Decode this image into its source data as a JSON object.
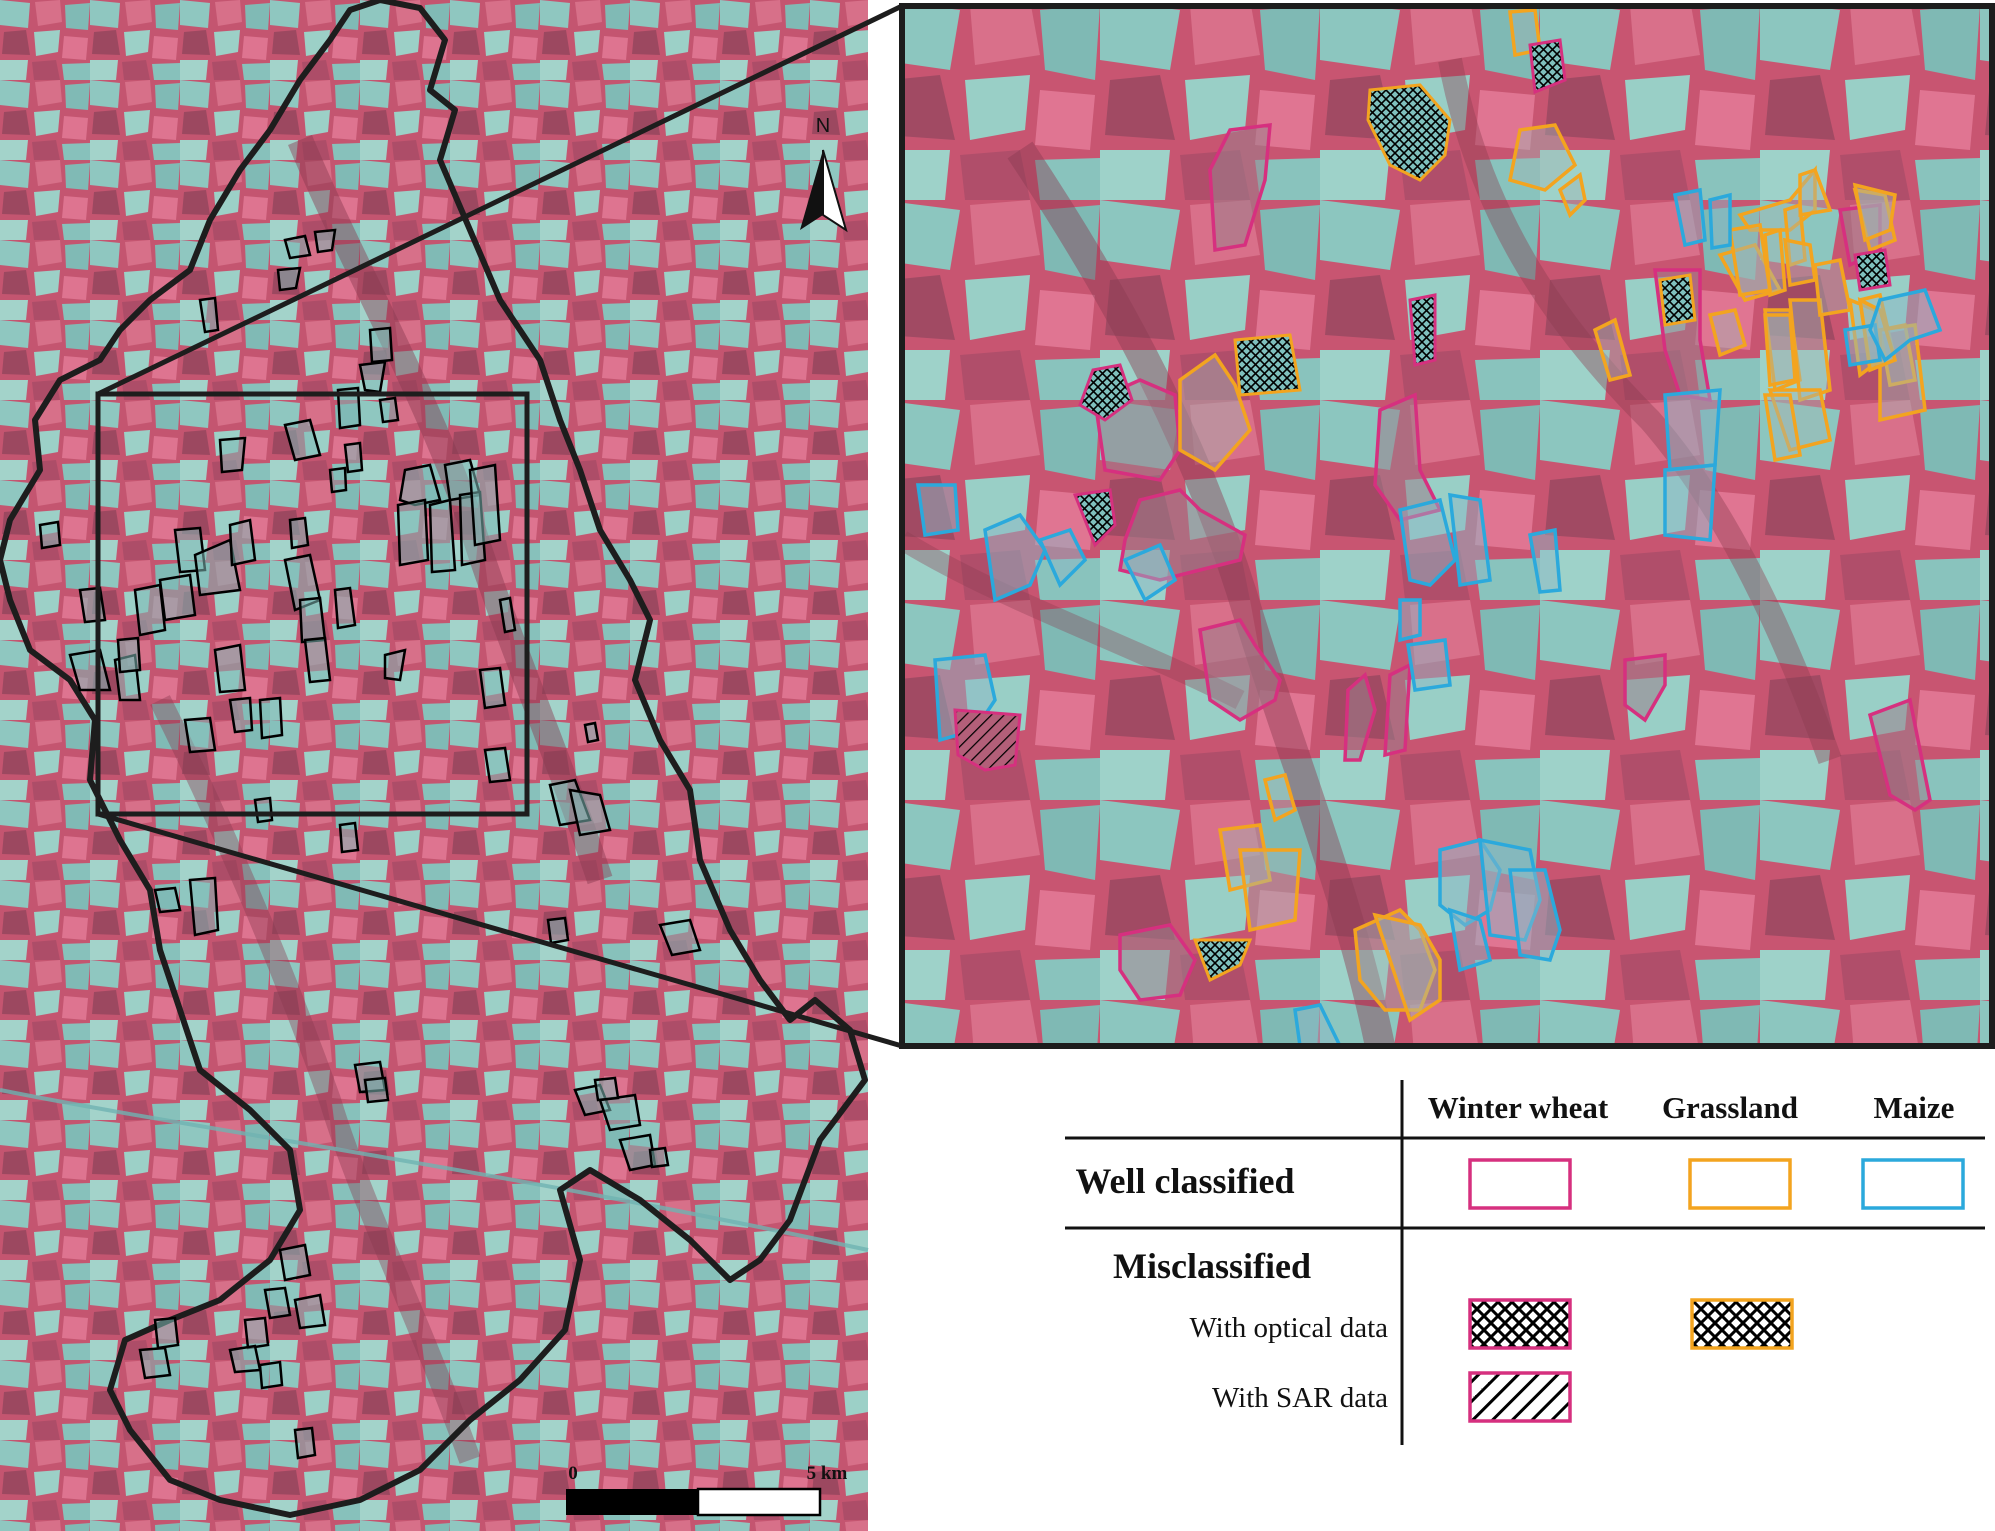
{
  "north_arrow": {
    "label": "N"
  },
  "scale_bar": {
    "start_label": "0",
    "end_label": "5 km"
  },
  "legend": {
    "columns": [
      "Winter wheat",
      "Grassland",
      "Maize"
    ],
    "row_well": "Well classified",
    "row_mis": "Misclassified",
    "sub_optical": "With optical data",
    "sub_sar": "With SAR data"
  },
  "colors": {
    "winter_wheat": "#d6307f",
    "grassland": "#f3a41f",
    "maize": "#2ba9dc",
    "background_red": "#c9506e",
    "background_cyan": "#86c7c0"
  }
}
